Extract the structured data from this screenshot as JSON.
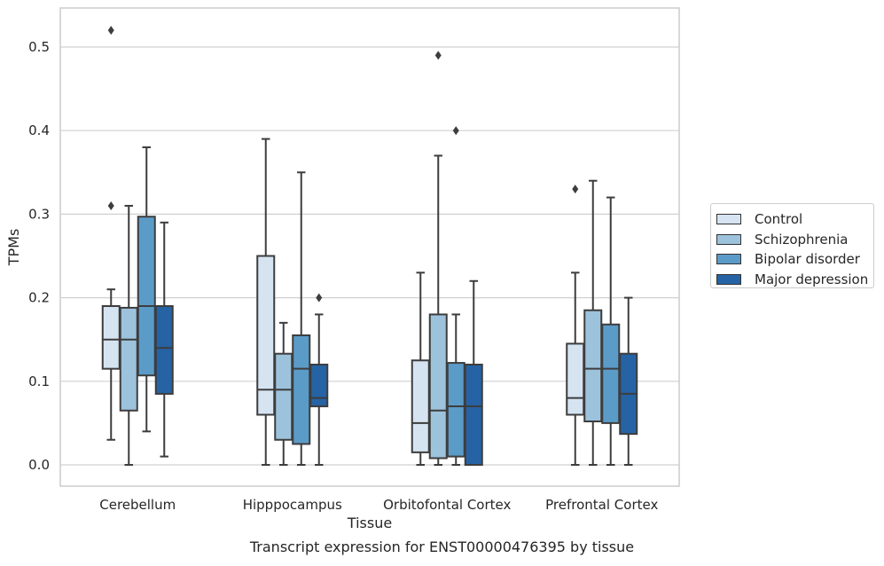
{
  "chart_data": {
    "type": "box",
    "xlabel": "Tissue",
    "ylabel": "TPMs",
    "ylim": [
      -0.025,
      0.545
    ],
    "yticks": [
      0.0,
      0.1,
      0.2,
      0.3,
      0.4,
      0.5
    ],
    "ytick_labels": [
      "0.0",
      "0.1",
      "0.2",
      "0.3",
      "0.4",
      "0.5"
    ],
    "grid": "horizontal",
    "legend_position": "right",
    "categories": [
      "Cerebellum",
      "Hipppocampus",
      "Orbitofontal Cortex",
      "Prefrontal Cortex"
    ],
    "series": [
      {
        "name": "Control",
        "color": "#d6e4f2",
        "boxes": [
          {
            "whisker_low": 0.03,
            "q1": 0.115,
            "median": 0.15,
            "q3": 0.19,
            "whisker_high": 0.21,
            "outliers": [
              0.31,
              0.52
            ]
          },
          {
            "whisker_low": 0.0,
            "q1": 0.06,
            "median": 0.09,
            "q3": 0.25,
            "whisker_high": 0.39,
            "outliers": []
          },
          {
            "whisker_low": 0.0,
            "q1": 0.015,
            "median": 0.05,
            "q3": 0.125,
            "whisker_high": 0.23,
            "outliers": []
          },
          {
            "whisker_low": 0.0,
            "q1": 0.06,
            "median": 0.08,
            "q3": 0.145,
            "whisker_high": 0.23,
            "outliers": [
              0.33
            ]
          }
        ]
      },
      {
        "name": "Schizophrenia",
        "color": "#9dc3dc",
        "boxes": [
          {
            "whisker_low": 0.0,
            "q1": 0.065,
            "median": 0.15,
            "q3": 0.188,
            "whisker_high": 0.31,
            "outliers": []
          },
          {
            "whisker_low": 0.0,
            "q1": 0.03,
            "median": 0.09,
            "q3": 0.133,
            "whisker_high": 0.17,
            "outliers": []
          },
          {
            "whisker_low": 0.0,
            "q1": 0.008,
            "median": 0.065,
            "q3": 0.18,
            "whisker_high": 0.37,
            "outliers": [
              0.49
            ]
          },
          {
            "whisker_low": 0.0,
            "q1": 0.052,
            "median": 0.115,
            "q3": 0.185,
            "whisker_high": 0.34,
            "outliers": []
          }
        ]
      },
      {
        "name": "Bipolar disorder",
        "color": "#5b9bc8",
        "boxes": [
          {
            "whisker_low": 0.04,
            "q1": 0.107,
            "median": 0.19,
            "q3": 0.297,
            "whisker_high": 0.38,
            "outliers": []
          },
          {
            "whisker_low": 0.0,
            "q1": 0.025,
            "median": 0.115,
            "q3": 0.155,
            "whisker_high": 0.35,
            "outliers": []
          },
          {
            "whisker_low": 0.0,
            "q1": 0.01,
            "median": 0.07,
            "q3": 0.122,
            "whisker_high": 0.18,
            "outliers": [
              0.4
            ]
          },
          {
            "whisker_low": 0.0,
            "q1": 0.05,
            "median": 0.115,
            "q3": 0.168,
            "whisker_high": 0.32,
            "outliers": []
          }
        ]
      },
      {
        "name": "Major depression",
        "color": "#2563a5",
        "boxes": [
          {
            "whisker_low": 0.01,
            "q1": 0.085,
            "median": 0.14,
            "q3": 0.19,
            "whisker_high": 0.29,
            "outliers": []
          },
          {
            "whisker_low": 0.0,
            "q1": 0.07,
            "median": 0.08,
            "q3": 0.12,
            "whisker_high": 0.18,
            "outliers": [
              0.2
            ]
          },
          {
            "whisker_low": 0.0,
            "q1": 0.0,
            "median": 0.07,
            "q3": 0.12,
            "whisker_high": 0.22,
            "outliers": []
          },
          {
            "whisker_low": 0.0,
            "q1": 0.037,
            "median": 0.085,
            "q3": 0.133,
            "whisker_high": 0.2,
            "outliers": []
          }
        ]
      }
    ]
  },
  "caption": "Transcript expression for ENST00000476395 by tissue"
}
